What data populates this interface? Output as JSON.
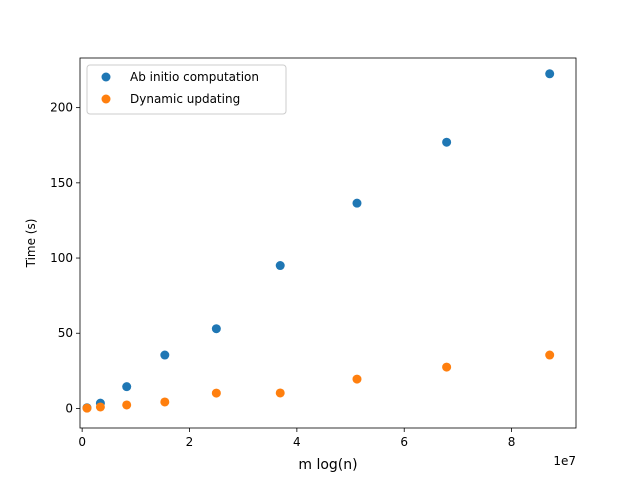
{
  "chart_data": {
    "type": "scatter",
    "xlabel": "m log(n)",
    "ylabel": "Time (s)",
    "x_offset_label": "1e7",
    "x_scale": 10000000,
    "xlim": [
      -400000,
      92000000
    ],
    "ylim": [
      -13,
      233
    ],
    "x_ticks": [
      0,
      20000000,
      40000000,
      60000000,
      80000000
    ],
    "x_tick_labels": [
      "0",
      "2",
      "4",
      "6",
      "8"
    ],
    "y_ticks": [
      0,
      50,
      100,
      150,
      200
    ],
    "y_tick_labels": [
      "0",
      "50",
      "100",
      "150",
      "200"
    ],
    "grid": false,
    "legend_position": "top-left",
    "series": [
      {
        "name": "Ab initio computation",
        "color": "#1f77b4",
        "x": [
          900000,
          3400000,
          8300000,
          15400000,
          25000000,
          36900000,
          51200000,
          67900000,
          87100000
        ],
        "y": [
          0.5,
          3.5,
          14.5,
          35.5,
          53,
          95,
          136.5,
          177,
          222.5
        ]
      },
      {
        "name": "Dynamic updating",
        "color": "#ff7f0e",
        "x": [
          900000,
          3400000,
          8300000,
          15400000,
          25000000,
          36900000,
          51200000,
          67900000,
          87100000
        ],
        "y": [
          0.2,
          1,
          2.3,
          4.3,
          10.2,
          10.3,
          19.5,
          27.5,
          35.5
        ]
      }
    ]
  }
}
